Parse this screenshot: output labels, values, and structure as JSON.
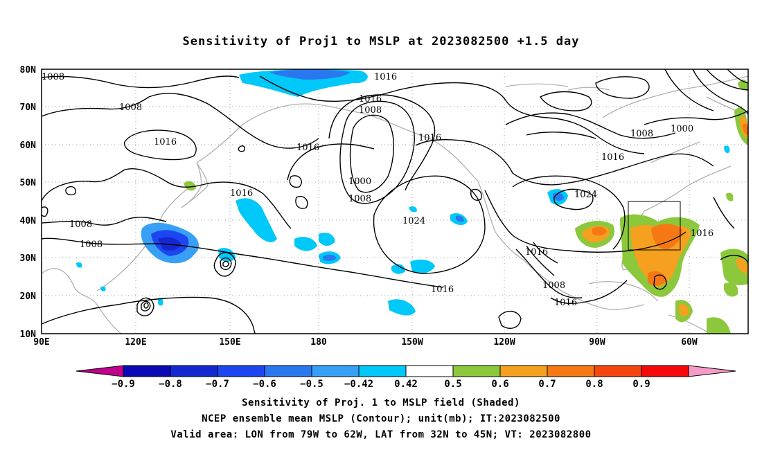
{
  "title": "Sensitivity of Proj1 to MSLP at 2023082500 +1.5 day",
  "map": {
    "lat_labels": [
      "80N",
      "70N",
      "60N",
      "50N",
      "40N",
      "30N",
      "20N",
      "10N"
    ],
    "lon_labels": [
      "90E",
      "120E",
      "150E",
      "180",
      "150W",
      "120W",
      "90W",
      "60W"
    ],
    "contour_labels": [
      {
        "text": "1008",
        "id": "a"
      },
      {
        "text": "1008",
        "id": "b"
      },
      {
        "text": "1016",
        "id": "c"
      },
      {
        "text": "1016",
        "id": "d"
      },
      {
        "text": "1016",
        "id": "e"
      },
      {
        "text": "1008",
        "id": "f"
      },
      {
        "text": "1016",
        "id": "g"
      },
      {
        "text": "1016",
        "id": "h"
      },
      {
        "text": "1000",
        "id": "i"
      },
      {
        "text": "1008",
        "id": "j"
      },
      {
        "text": "1024",
        "id": "k"
      },
      {
        "text": "1008",
        "id": "l"
      },
      {
        "text": "1008",
        "id": "m"
      },
      {
        "text": "1016",
        "id": "n"
      },
      {
        "text": "1016",
        "id": "o"
      },
      {
        "text": "1008",
        "id": "p"
      },
      {
        "text": "1016",
        "id": "q"
      },
      {
        "text": "1024",
        "id": "r"
      },
      {
        "text": "1016",
        "id": "s"
      },
      {
        "text": "1008",
        "id": "t"
      },
      {
        "text": "1000",
        "id": "u"
      },
      {
        "text": "1016",
        "id": "v"
      },
      {
        "text": "1016",
        "id": "w"
      }
    ]
  },
  "colorbar": {
    "labels": [
      "-0.9",
      "-0.8",
      "-0.7",
      "-0.6",
      "-0.5",
      "-0.42",
      "0.42",
      "0.5",
      "0.6",
      "0.7",
      "0.8",
      "0.9"
    ],
    "colors": [
      "#c0008c",
      "#0a0ab4",
      "#1428d2",
      "#1e46f0",
      "#2a78f0",
      "#37a0f5",
      "#00c8f8",
      "#ffffff",
      "#8cc83c",
      "#f5a01e",
      "#f57814",
      "#f5460f",
      "#f50a0a",
      "#f59bc8"
    ]
  },
  "captions": {
    "line1": "Sensitivity of Proj. 1 to MSLP field (Shaded)",
    "line2": "NCEP ensemble mean MSLP (Contour); unit(mb); IT:2023082500",
    "line3": "Valid area: LON from 79W to 62W, LAT from 32N to 45N; VT: 2023082800"
  }
}
